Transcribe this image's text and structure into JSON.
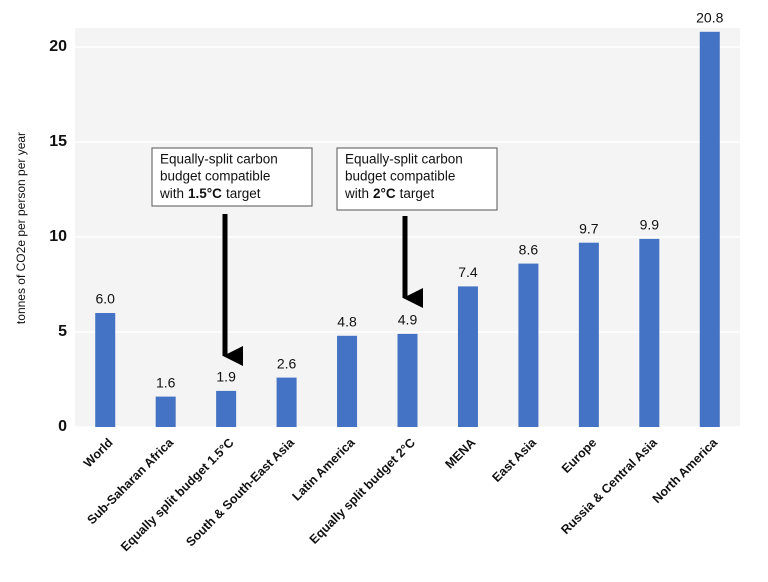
{
  "chart_data": {
    "type": "bar",
    "y_label": "tonnes of CO2e per person per year",
    "categories": [
      "World",
      "Sub-Saharan Africa",
      "Equally split budget 1.5°C",
      "South & South-East Asia",
      "Latin America",
      "Equally split budget 2°C",
      "MENA",
      "East Asia",
      "Europe",
      "Russia & Central Asia",
      "North America"
    ],
    "values": [
      6.0,
      1.6,
      1.9,
      2.6,
      4.8,
      4.9,
      7.4,
      8.6,
      9.7,
      9.9,
      20.8
    ],
    "value_labels": [
      "6.0",
      "1.6",
      "1.9",
      "2.6",
      "4.8",
      "4.9",
      "7.4",
      "8.6",
      "9.7",
      "9.9",
      "20.8"
    ],
    "color": "#4472c4",
    "ylim": [
      0,
      21
    ],
    "yticks": [
      0,
      5,
      10,
      15,
      20
    ],
    "grid": true,
    "annotations": [
      {
        "lines": [
          "Equally-split carbon",
          "budget compatible"
        ],
        "prefix": "with",
        "bold": "1.5°C",
        "suffix": "target"
      },
      {
        "lines": [
          "Equally-split carbon",
          "budget compatible"
        ],
        "prefix": "with",
        "bold": "2°C",
        "suffix": "target"
      }
    ]
  }
}
